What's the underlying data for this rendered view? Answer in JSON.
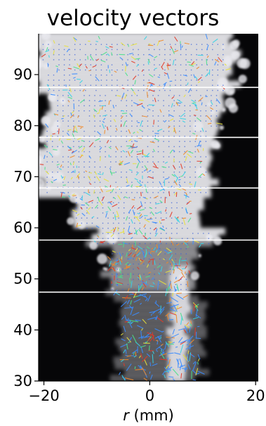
{
  "chart_data": {
    "type": "image",
    "title": "velocity vectors",
    "xlabel_symbol": "r",
    "xlabel_unit": " (mm)",
    "xlim": [
      -21,
      20.5
    ],
    "ylim": [
      30,
      98
    ],
    "x_ticks": [
      -20,
      0,
      20
    ],
    "y_ticks": [
      30,
      40,
      50,
      60,
      70,
      80,
      90
    ],
    "x_tick_labels": [
      "−20",
      "0",
      "20"
    ],
    "y_tick_labels": [
      "30",
      "40",
      "50",
      "60",
      "70",
      "80",
      "90"
    ],
    "panel_boundaries_y": [
      47.4,
      57.6,
      67.8,
      77.7,
      87.5
    ],
    "colors": {
      "background": "#060608",
      "plume": "#e9e9ee",
      "vector_palette": [
        "#3a8cff",
        "#36d2e6",
        "#4be08a",
        "#e8e23c",
        "#f08a2a",
        "#e23a2a"
      ],
      "divider": "#ffffff"
    }
  }
}
